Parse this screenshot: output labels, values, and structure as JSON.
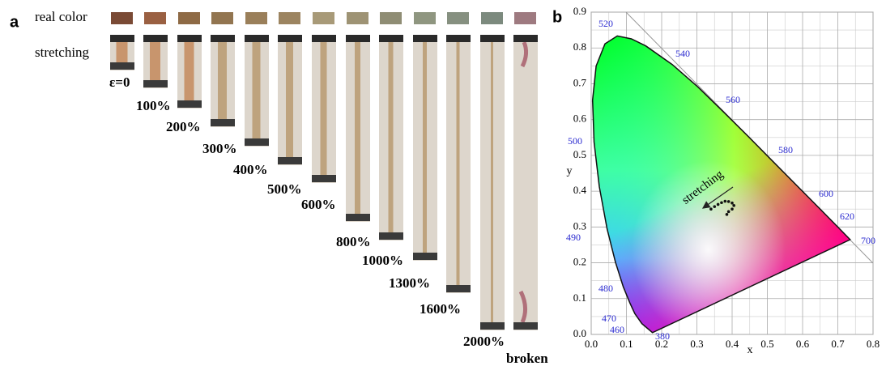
{
  "panel_a": {
    "label": "a",
    "row_labels": [
      "real color",
      "stretching"
    ],
    "swatch_colors": [
      "#7a4a35",
      "#9a6042",
      "#8e6a45",
      "#927550",
      "#9a7f5a",
      "#9c8460",
      "#a89a78",
      "#9e9374",
      "#8f8d74",
      "#8f9680",
      "#869080",
      "#7c8a7e",
      "#9e7a80"
    ],
    "strains": [
      "ε=0",
      "100%",
      "200%",
      "300%",
      "400%",
      "500%",
      "600%",
      "800%",
      "1000%",
      "1300%",
      "1600%",
      "2000%",
      "broken"
    ]
  },
  "chart_data": {
    "type": "scatter",
    "panel_label": "b",
    "x_label": "x",
    "y_label": "y",
    "xlim": [
      0,
      0.8
    ],
    "ylim": [
      0,
      0.9
    ],
    "xticks": [
      {
        "value": 0,
        "label": "0.0"
      },
      0.1,
      0.2,
      0.3,
      0.4,
      0.5,
      0.6,
      0.7,
      0.8
    ],
    "yticks": [
      {
        "value": 0,
        "label": "0.0"
      },
      0.1,
      0.2,
      0.3,
      0.4,
      0.5,
      0.6,
      0.7,
      0.8,
      0.9
    ],
    "grid": true,
    "wavelength_labels": [
      "380",
      "460",
      "470",
      "480",
      "490",
      "500",
      "520",
      "540",
      "560",
      "580",
      "600",
      "620",
      "700"
    ],
    "annotation": "stretching",
    "series": [
      {
        "color": "#111111",
        "x": [
          0.34,
          0.35,
          0.36,
          0.37,
          0.38,
          0.39,
          0.4,
          0.405,
          0.4,
          0.39,
          0.385
        ],
        "y": [
          0.35,
          0.357,
          0.363,
          0.368,
          0.372,
          0.371,
          0.367,
          0.36,
          0.35,
          0.343,
          0.335
        ]
      }
    ]
  }
}
